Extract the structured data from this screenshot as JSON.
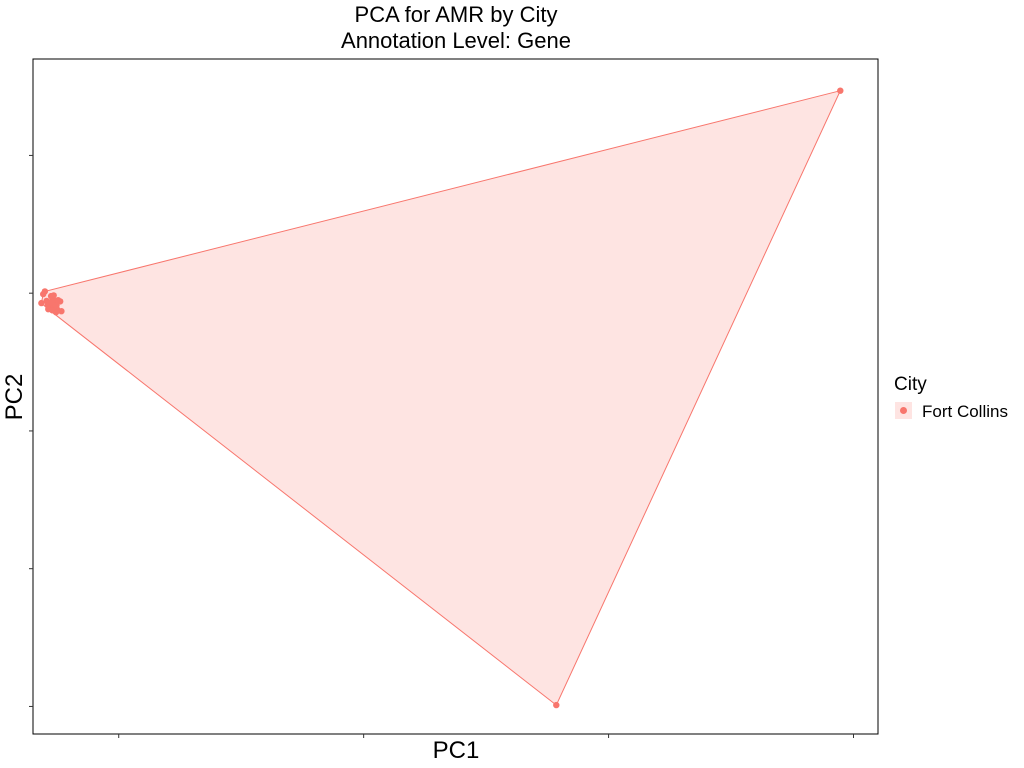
{
  "chart_data": {
    "type": "scatter",
    "title": "PCA for AMR by City",
    "subtitle": "Annotation Level: Gene",
    "xlabel": "PC1",
    "ylabel": "PC2",
    "xlim": [
      -0.7,
      6.2
    ],
    "ylim": [
      -2.2,
      2.7
    ],
    "tick_labels_shown": false,
    "grid": false,
    "legend_position": "right",
    "legend_title": "City",
    "hull": true,
    "series": [
      {
        "name": "Fort Collins",
        "color": "#F8766D",
        "points": [
          [
            5.892,
            2.47
          ],
          [
            3.573,
            -1.99
          ],
          [
            -0.603,
            1.013
          ],
          [
            -0.631,
            0.928
          ],
          [
            -0.478,
            0.94
          ],
          [
            -0.468,
            0.869
          ],
          [
            -0.589,
            0.944
          ],
          [
            -0.552,
            0.906
          ],
          [
            -0.532,
            0.935
          ],
          [
            -0.567,
            0.926
          ],
          [
            -0.539,
            0.957
          ],
          [
            -0.52,
            0.892
          ],
          [
            -0.505,
            0.884
          ],
          [
            -0.575,
            0.884
          ],
          [
            -0.541,
            0.876
          ],
          [
            -0.512,
            0.862
          ],
          [
            -0.552,
            0.979
          ],
          [
            -0.531,
            0.984
          ],
          [
            -0.579,
            0.912
          ],
          [
            -0.525,
            0.92
          ],
          [
            -0.495,
            0.949
          ],
          [
            -0.617,
            0.993
          ],
          [
            -0.545,
            0.934
          ],
          [
            -0.508,
            0.912
          ]
        ]
      }
    ]
  }
}
